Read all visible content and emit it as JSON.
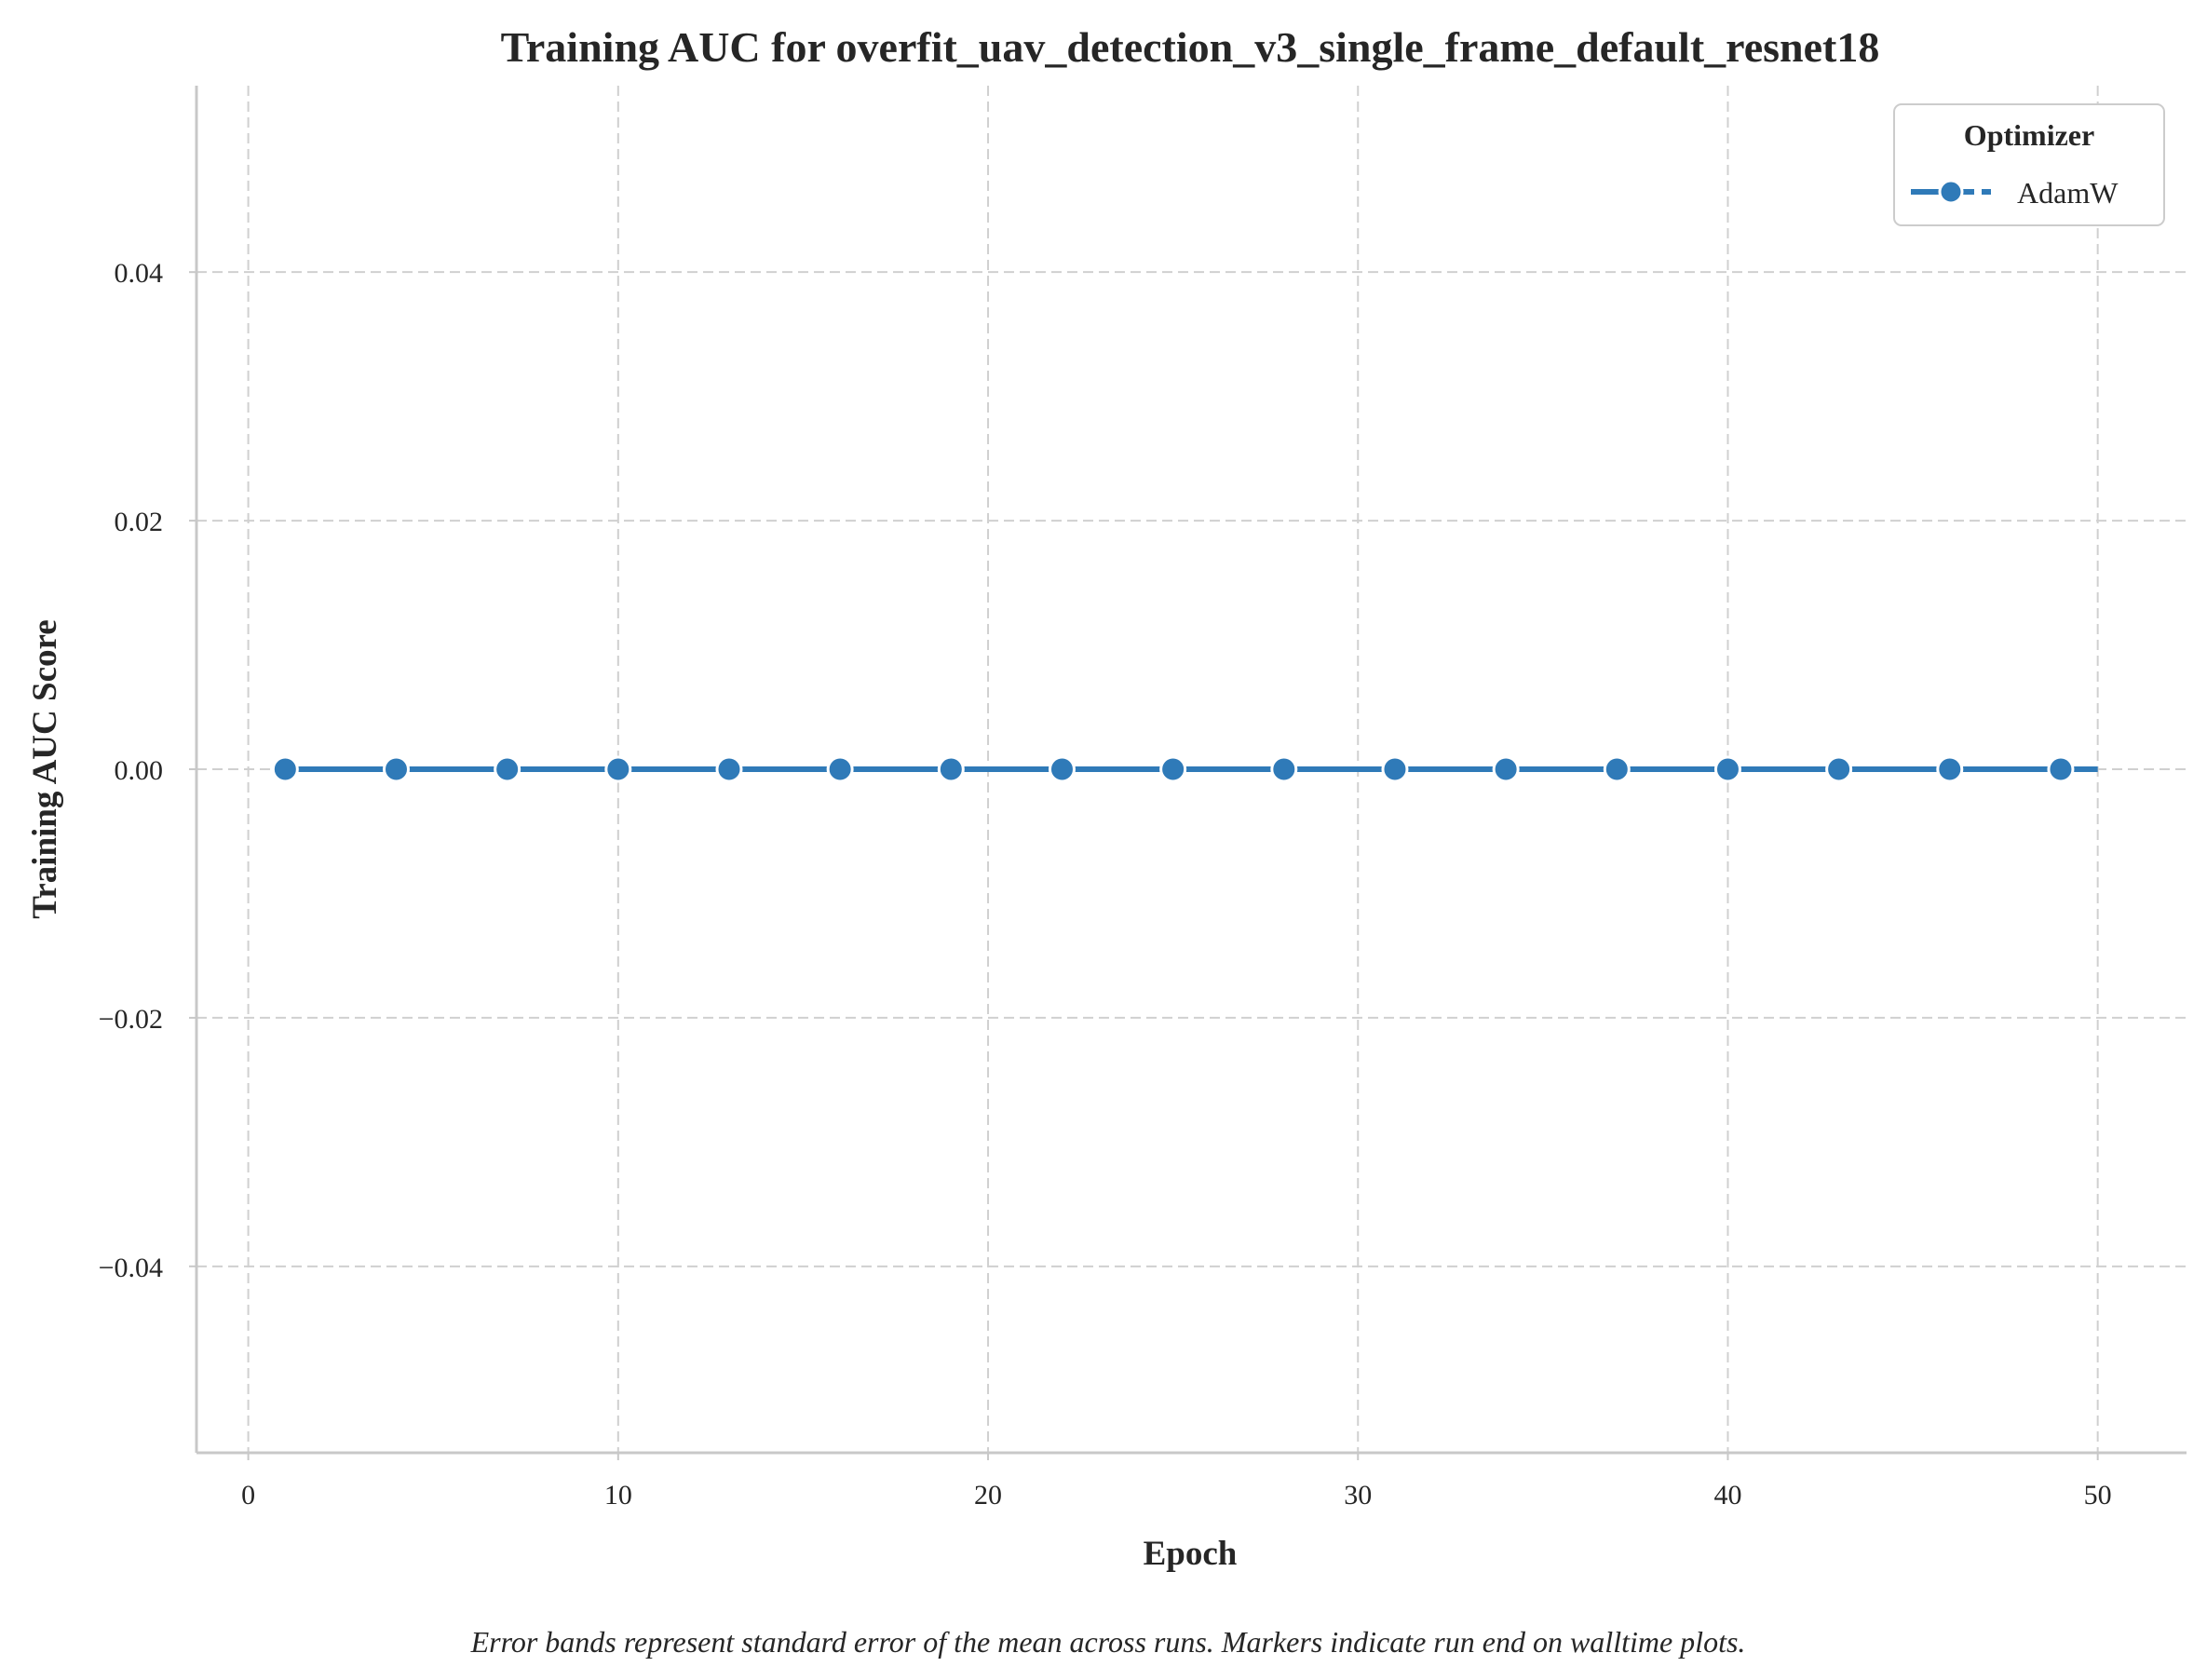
{
  "chart_data": {
    "type": "line",
    "title": "Training AUC for overfit_uav_detection_v3_single_frame_default_resnet18",
    "xlabel": "Epoch",
    "ylabel": "Training AUC Score",
    "xlim": [
      -1.4,
      52.4
    ],
    "ylim": [
      -0.055,
      0.055
    ],
    "xticks": [
      0,
      10,
      20,
      30,
      40,
      50
    ],
    "xtick_labels": [
      "0",
      "10",
      "20",
      "30",
      "40",
      "50"
    ],
    "yticks": [
      0.04,
      0.02,
      0.0,
      -0.02,
      -0.04
    ],
    "ytick_labels": [
      "0.04",
      "0.02",
      "0.00",
      "−0.02",
      "−0.04"
    ],
    "grid": true,
    "legend": {
      "title": "Optimizer",
      "position": "top-right"
    },
    "series": [
      {
        "name": "AdamW",
        "color": "#2f7ab8",
        "line_x": [
          1,
          50
        ],
        "line_y": [
          0,
          0
        ],
        "marker_x": [
          1,
          4,
          7,
          10,
          13,
          16,
          19,
          22,
          25,
          28,
          31,
          34,
          37,
          40,
          43,
          46,
          49
        ],
        "marker_y": [
          0,
          0,
          0,
          0,
          0,
          0,
          0,
          0,
          0,
          0,
          0,
          0,
          0,
          0,
          0,
          0,
          0
        ]
      }
    ],
    "caption": "Error bands represent standard error of the mean across runs. Markers indicate run end on walltime plots."
  }
}
